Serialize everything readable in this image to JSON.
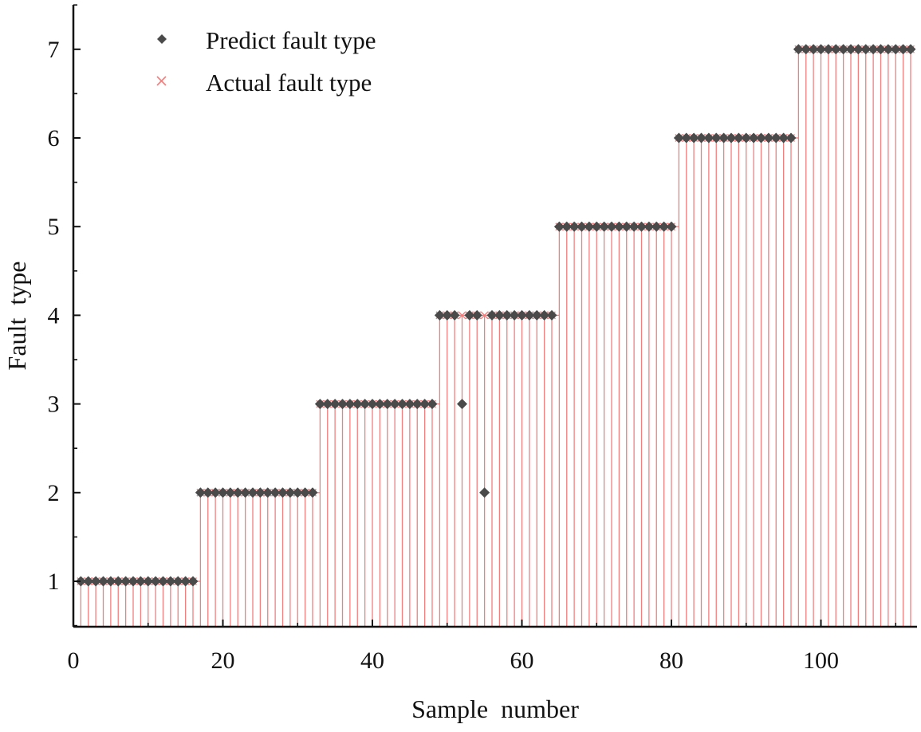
{
  "chart_data": {
    "type": "scatter",
    "title": "",
    "xlabel": "Sample  number",
    "ylabel": "Fault  type",
    "xlim": [
      0,
      112
    ],
    "ylim": [
      0.5,
      7.5
    ],
    "xticks": [
      0,
      20,
      40,
      60,
      80,
      100
    ],
    "yticks": [
      1,
      2,
      3,
      4,
      5,
      6,
      7
    ],
    "grid": false,
    "legend": {
      "position": "top-left"
    },
    "series": [
      {
        "name": "Predict fault type",
        "marker": "diamond",
        "color": "#4a4a4a",
        "x": [
          1,
          2,
          3,
          4,
          5,
          6,
          7,
          8,
          9,
          10,
          11,
          12,
          13,
          14,
          15,
          16,
          17,
          18,
          19,
          20,
          21,
          22,
          23,
          24,
          25,
          26,
          27,
          28,
          29,
          30,
          31,
          32,
          33,
          34,
          35,
          36,
          37,
          38,
          39,
          40,
          41,
          42,
          43,
          44,
          45,
          46,
          47,
          48,
          49,
          50,
          51,
          52,
          53,
          54,
          55,
          56,
          57,
          58,
          59,
          60,
          61,
          62,
          63,
          64,
          65,
          66,
          67,
          68,
          69,
          70,
          71,
          72,
          73,
          74,
          75,
          76,
          77,
          78,
          79,
          80,
          81,
          82,
          83,
          84,
          85,
          86,
          87,
          88,
          89,
          90,
          91,
          92,
          93,
          94,
          95,
          96,
          97,
          98,
          99,
          100,
          101,
          102,
          103,
          104,
          105,
          106,
          107,
          108,
          109,
          110,
          111,
          112
        ],
        "y": [
          1,
          1,
          1,
          1,
          1,
          1,
          1,
          1,
          1,
          1,
          1,
          1,
          1,
          1,
          1,
          1,
          2,
          2,
          2,
          2,
          2,
          2,
          2,
          2,
          2,
          2,
          2,
          2,
          2,
          2,
          2,
          2,
          3,
          3,
          3,
          3,
          3,
          3,
          3,
          3,
          3,
          3,
          3,
          3,
          3,
          3,
          3,
          3,
          4,
          4,
          4,
          3,
          4,
          4,
          2,
          4,
          4,
          4,
          4,
          4,
          4,
          4,
          4,
          4,
          5,
          5,
          5,
          5,
          5,
          5,
          5,
          5,
          5,
          5,
          5,
          5,
          5,
          5,
          5,
          5,
          6,
          6,
          6,
          6,
          6,
          6,
          6,
          6,
          6,
          6,
          6,
          6,
          6,
          6,
          6,
          6,
          7,
          7,
          7,
          7,
          7,
          7,
          7,
          7,
          7,
          7,
          7,
          7,
          7,
          7,
          7,
          7
        ]
      },
      {
        "name": "Actual fault type",
        "marker": "x",
        "color": "#f08080",
        "x": [
          1,
          2,
          3,
          4,
          5,
          6,
          7,
          8,
          9,
          10,
          11,
          12,
          13,
          14,
          15,
          16,
          17,
          18,
          19,
          20,
          21,
          22,
          23,
          24,
          25,
          26,
          27,
          28,
          29,
          30,
          31,
          32,
          33,
          34,
          35,
          36,
          37,
          38,
          39,
          40,
          41,
          42,
          43,
          44,
          45,
          46,
          47,
          48,
          49,
          50,
          51,
          52,
          53,
          54,
          55,
          56,
          57,
          58,
          59,
          60,
          61,
          62,
          63,
          64,
          65,
          66,
          67,
          68,
          69,
          70,
          71,
          72,
          73,
          74,
          75,
          76,
          77,
          78,
          79,
          80,
          81,
          82,
          83,
          84,
          85,
          86,
          87,
          88,
          89,
          90,
          91,
          92,
          93,
          94,
          95,
          96,
          97,
          98,
          99,
          100,
          101,
          102,
          103,
          104,
          105,
          106,
          107,
          108,
          109,
          110,
          111,
          112
        ],
        "y": [
          1,
          1,
          1,
          1,
          1,
          1,
          1,
          1,
          1,
          1,
          1,
          1,
          1,
          1,
          1,
          1,
          2,
          2,
          2,
          2,
          2,
          2,
          2,
          2,
          2,
          2,
          2,
          2,
          2,
          2,
          2,
          2,
          3,
          3,
          3,
          3,
          3,
          3,
          3,
          3,
          3,
          3,
          3,
          3,
          3,
          3,
          3,
          3,
          4,
          4,
          4,
          4,
          4,
          4,
          4,
          4,
          4,
          4,
          4,
          4,
          4,
          4,
          4,
          4,
          5,
          5,
          5,
          5,
          5,
          5,
          5,
          5,
          5,
          5,
          5,
          5,
          5,
          5,
          5,
          5,
          6,
          6,
          6,
          6,
          6,
          6,
          6,
          6,
          6,
          6,
          6,
          6,
          6,
          6,
          6,
          6,
          7,
          7,
          7,
          7,
          7,
          7,
          7,
          7,
          7,
          7,
          7,
          7,
          7,
          7,
          7,
          7
        ]
      }
    ]
  }
}
